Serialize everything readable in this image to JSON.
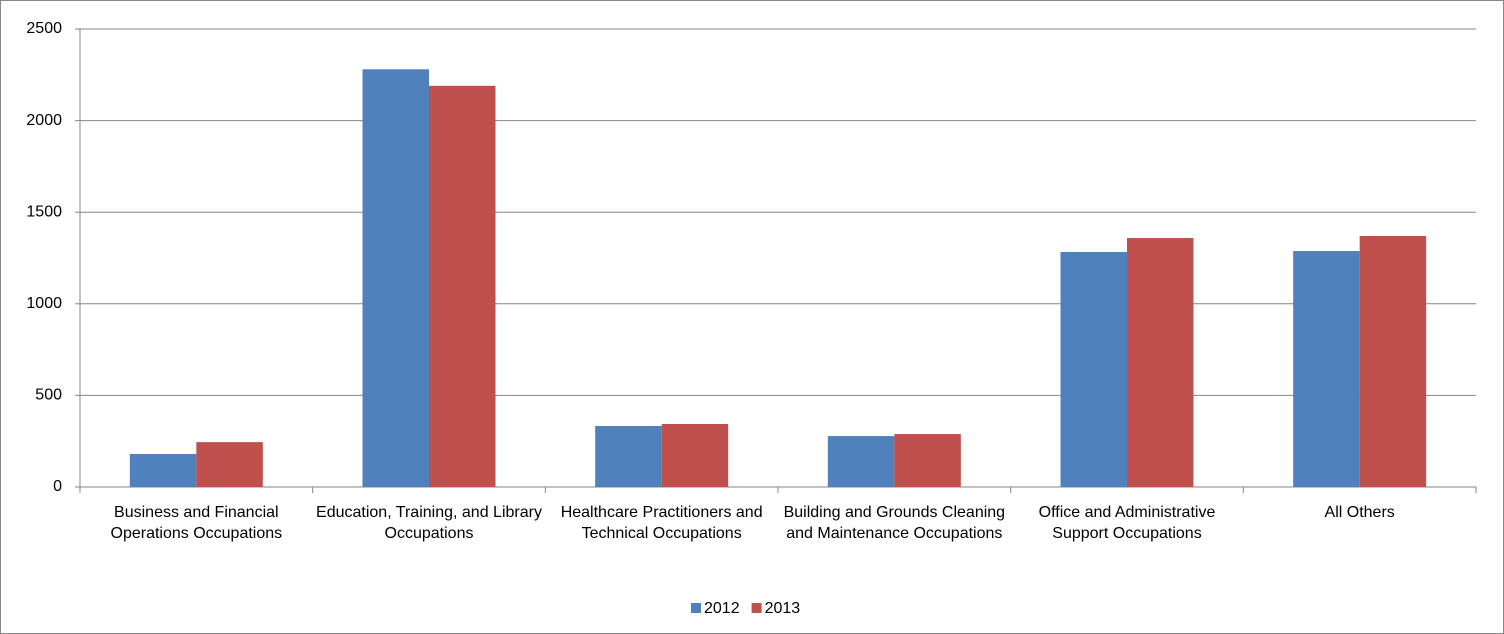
{
  "chart_data": {
    "type": "bar",
    "categories": [
      "Business and Financial Operations Occupations",
      "Education, Training, and Library Occupations",
      "Healthcare Practitioners and Technical Occupations",
      "Building and Grounds Cleaning and Maintenance Occupations",
      "Office and Administrative Support Occupations",
      "All Others"
    ],
    "series": [
      {
        "name": "2012",
        "color": "#4f81bd",
        "values": [
          180,
          2280,
          333,
          278,
          1283,
          1288
        ]
      },
      {
        "name": "2013",
        "color": "#c0504d",
        "values": [
          245,
          2190,
          344,
          289,
          1359,
          1370
        ]
      }
    ],
    "ylim": [
      0,
      2500
    ],
    "yticks": [
      0,
      500,
      1000,
      1500,
      2000,
      2500
    ],
    "grid": true,
    "legend": "bottom"
  }
}
